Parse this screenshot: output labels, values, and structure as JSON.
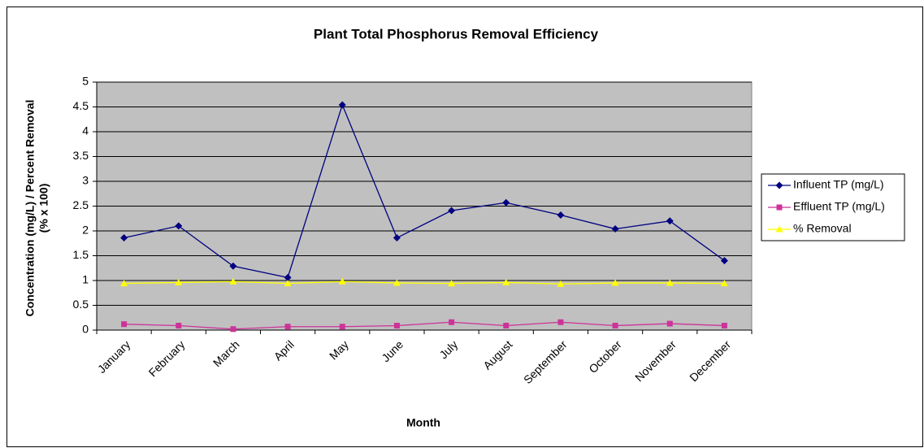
{
  "chart_data": {
    "type": "line",
    "title": "Plant Total Phosphorus Removal Efficiency",
    "x_label": "Month",
    "y_label": [
      "Concentration (mg/L) / Percent Removal",
      "(% x 100)"
    ],
    "categories": [
      "January",
      "February",
      "March",
      "April",
      "May",
      "June",
      "July",
      "August",
      "September",
      "October",
      "November",
      "December"
    ],
    "series": [
      {
        "name": "Influent TP (mg/L)",
        "color": "#000080",
        "marker": "diamond",
        "values": [
          1.86,
          2.1,
          1.29,
          1.06,
          4.54,
          1.86,
          2.41,
          2.57,
          2.32,
          2.04,
          2.2,
          1.4
        ]
      },
      {
        "name": "Effluent TP (mg/L)",
        "color": "#cc3399",
        "marker": "square",
        "values": [
          0.12,
          0.09,
          0.02,
          0.07,
          0.07,
          0.09,
          0.16,
          0.09,
          0.16,
          0.09,
          0.13,
          0.09
        ]
      },
      {
        "name": "% Removal",
        "color": "#ffff00",
        "marker": "triangle",
        "values": [
          0.94,
          0.96,
          0.98,
          0.94,
          0.98,
          0.95,
          0.94,
          0.96,
          0.93,
          0.95,
          0.95,
          0.94
        ]
      }
    ],
    "ylim": [
      0,
      5
    ],
    "yticks": [
      0,
      0.5,
      1,
      1.5,
      2,
      2.5,
      3,
      3.5,
      4,
      4.5,
      5
    ],
    "grid": true,
    "plot_background": "#c0c0c0",
    "legend": "right"
  }
}
